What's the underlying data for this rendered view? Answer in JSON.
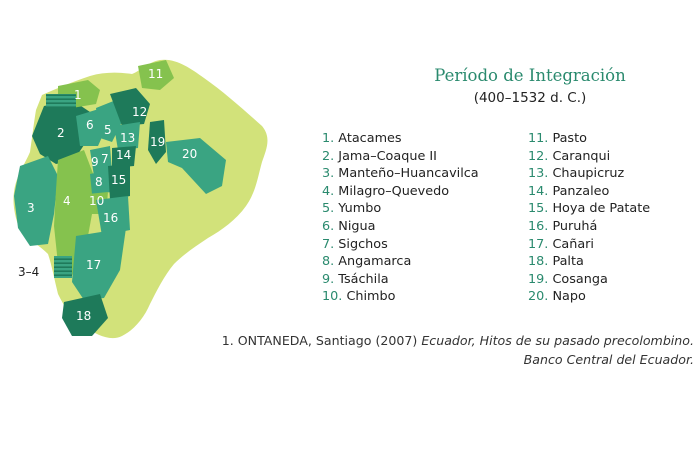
{
  "title": "Período de Integración",
  "subtitle": "(400–1532 d. C.)",
  "colors": {
    "country_fill": "#d2e27a",
    "region_light": "#85c24e",
    "region_mid": "#3aa482",
    "region_dark": "#1e7a5a",
    "heading": "#2a8a6e"
  },
  "map_labels": [
    "1",
    "2",
    "3",
    "4",
    "5",
    "6",
    "7",
    "8",
    "9",
    "10",
    "11",
    "12",
    "13",
    "14",
    "15",
    "16",
    "17",
    "18",
    "19",
    "20",
    "3–4"
  ],
  "legend_col1": [
    {
      "num": "1.",
      "name": "Atacames"
    },
    {
      "num": "2.",
      "name": "Jama–Coaque II"
    },
    {
      "num": "3.",
      "name": "Manteño–Huancavilca"
    },
    {
      "num": "4.",
      "name": "Milagro–Quevedo"
    },
    {
      "num": "5.",
      "name": "Yumbo"
    },
    {
      "num": "6.",
      "name": "Nigua"
    },
    {
      "num": "7.",
      "name": "Sigchos"
    },
    {
      "num": "8.",
      "name": "Angamarca"
    },
    {
      "num": "9.",
      "name": "Tsáchila"
    },
    {
      "num": "10.",
      "name": "Chimbo"
    }
  ],
  "legend_col2": [
    {
      "num": "11.",
      "name": "Pasto"
    },
    {
      "num": "12.",
      "name": "Caranqui"
    },
    {
      "num": "13.",
      "name": "Chaupicruz"
    },
    {
      "num": "14.",
      "name": "Panzaleo"
    },
    {
      "num": "15.",
      "name": "Hoya de Patate"
    },
    {
      "num": "16.",
      "name": "Puruhá"
    },
    {
      "num": "17.",
      "name": "Cañari"
    },
    {
      "num": "18.",
      "name": "Palta"
    },
    {
      "num": "19.",
      "name": "Cosanga"
    },
    {
      "num": "20.",
      "name": "Napo"
    }
  ],
  "citation": {
    "line1_plain": "1. ONTANEDA, Santiago (2007) ",
    "line1_italic": "Ecuador, Hitos de su pasado precolombino.",
    "line2_italic": "Banco Central del Ecuador."
  }
}
